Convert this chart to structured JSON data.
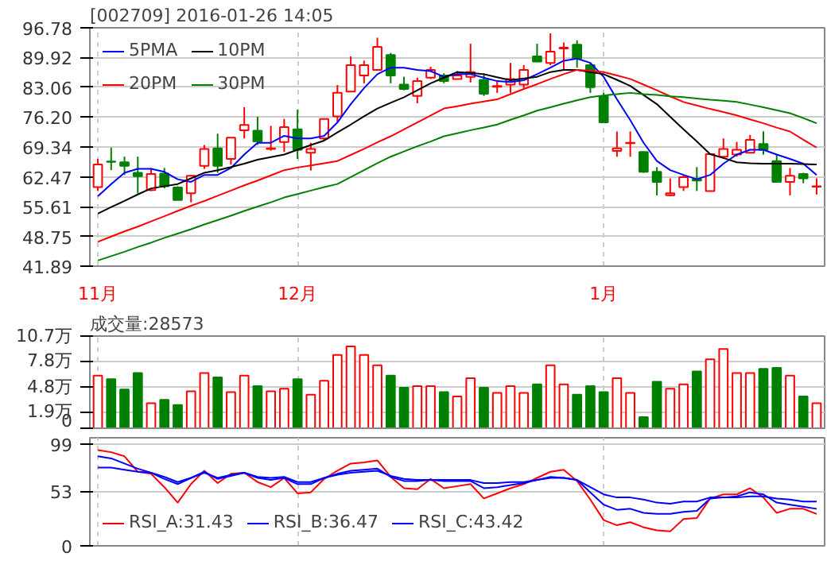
{
  "chart_data": [
    {
      "type": "candlestick",
      "title": "[002709] 2016-01-26 14:05",
      "categories": [
        "11月",
        null,
        null,
        null,
        null,
        null,
        null,
        null,
        null,
        null,
        null,
        null,
        null,
        null,
        null,
        "12月",
        null,
        null,
        null,
        null,
        null,
        null,
        null,
        null,
        null,
        null,
        null,
        null,
        null,
        null,
        null,
        null,
        null,
        null,
        null,
        null,
        null,
        null,
        "1月",
        null,
        null,
        null,
        null,
        null,
        null,
        null,
        null,
        null,
        null,
        null,
        null,
        null,
        null,
        null,
        null
      ],
      "ohlc": [
        [
          60.1,
          66.6,
          59.2,
          65.3
        ],
        [
          66.0,
          69.2,
          64.0,
          65.9
        ],
        [
          65.8,
          67.1,
          62.9,
          65.0
        ],
        [
          63.4,
          67.1,
          58.7,
          62.6
        ],
        [
          59.4,
          64.5,
          59.2,
          63.1
        ],
        [
          63.2,
          64.5,
          59.8,
          60.3
        ],
        [
          60.0,
          60.3,
          57.1,
          57.1
        ],
        [
          58.7,
          62.9,
          56.6,
          62.7
        ],
        [
          65.0,
          69.8,
          64.3,
          68.9
        ],
        [
          69.0,
          72.4,
          63.4,
          65.0
        ],
        [
          66.6,
          71.5,
          65.3,
          71.5
        ],
        [
          73.2,
          78.5,
          71.3,
          74.4
        ],
        [
          73.1,
          76.3,
          69.8,
          70.6
        ],
        [
          68.9,
          74.2,
          68.5,
          69.0
        ],
        [
          70.5,
          75.8,
          68.2,
          73.9
        ],
        [
          73.4,
          77.9,
          66.6,
          68.7
        ],
        [
          68.0,
          70.3,
          63.9,
          68.9
        ],
        [
          71.3,
          75.8,
          70.8,
          75.8
        ],
        [
          76.4,
          83.6,
          75.2,
          81.8
        ],
        [
          82.1,
          90.2,
          82.1,
          88.2
        ],
        [
          85.8,
          89.2,
          84.0,
          88.2
        ],
        [
          87.1,
          94.5,
          87.1,
          92.4
        ],
        [
          90.5,
          91.0,
          84.0,
          85.8
        ],
        [
          83.7,
          85.5,
          82.4,
          82.7
        ],
        [
          81.1,
          85.3,
          79.4,
          84.5
        ],
        [
          85.3,
          87.8,
          85.0,
          87.1
        ],
        [
          85.8,
          86.3,
          84.0,
          84.5
        ],
        [
          85.0,
          86.8,
          85.0,
          85.8
        ],
        [
          85.5,
          93.1,
          84.2,
          86.6
        ],
        [
          84.8,
          86.3,
          81.1,
          81.6
        ],
        [
          83.2,
          84.5,
          81.8,
          83.4
        ],
        [
          83.7,
          88.7,
          81.8,
          85.0
        ],
        [
          83.7,
          88.2,
          82.9,
          87.1
        ],
        [
          90.2,
          93.1,
          89.0,
          89.0
        ],
        [
          88.7,
          95.5,
          88.2,
          91.3
        ],
        [
          92.0,
          93.4,
          87.1,
          92.2
        ],
        [
          92.9,
          93.9,
          87.6,
          89.7
        ],
        [
          88.2,
          88.7,
          81.8,
          83.1
        ],
        [
          81.0,
          81.8,
          75.0,
          75.0
        ],
        [
          68.4,
          72.9,
          67.1,
          69.0
        ],
        [
          70.2,
          72.9,
          67.1,
          70.3
        ],
        [
          68.2,
          68.2,
          63.4,
          63.6
        ],
        [
          63.6,
          64.7,
          58.2,
          61.3
        ],
        [
          58.2,
          62.1,
          58.0,
          58.7
        ],
        [
          60.1,
          62.9,
          59.2,
          62.4
        ],
        [
          61.9,
          64.7,
          59.2,
          61.6
        ],
        [
          59.2,
          67.7,
          59.2,
          67.7
        ],
        [
          67.1,
          71.3,
          66.6,
          68.9
        ],
        [
          67.6,
          70.5,
          67.1,
          68.7
        ],
        [
          68.0,
          72.1,
          68.0,
          71.0
        ],
        [
          70.0,
          72.9,
          67.6,
          68.7
        ],
        [
          66.1,
          67.7,
          61.3,
          61.3
        ],
        [
          61.3,
          64.5,
          58.2,
          62.7
        ],
        [
          63.1,
          63.4,
          61.0,
          62.1
        ],
        [
          60.2,
          62.1,
          58.4,
          60.3
        ]
      ],
      "colors": [
        "#ff0000",
        "#008000",
        "#008000",
        "#008000",
        "#ff0000",
        "#008000",
        "#008000",
        "#ff0000",
        "#ff0000",
        "#008000",
        "#ff0000",
        "#ff0000",
        "#008000",
        "#ff0000",
        "#ff0000",
        "#008000",
        "#ff0000",
        "#ff0000",
        "#ff0000",
        "#ff0000",
        "#ff0000",
        "#ff0000",
        "#008000",
        "#008000",
        "#ff0000",
        "#ff0000",
        "#008000",
        "#ff0000",
        "#ff0000",
        "#008000",
        "#ff0000",
        "#ff0000",
        "#ff0000",
        "#008000",
        "#ff0000",
        "#ff0000",
        "#008000",
        "#008000",
        "#008000",
        "#ff0000",
        "#ff0000",
        "#008000",
        "#008000",
        "#ff0000",
        "#ff0000",
        "#008000",
        "#ff0000",
        "#ff0000",
        "#ff0000",
        "#ff0000",
        "#008000",
        "#008000",
        "#ff0000",
        "#008000",
        "#ff0000"
      ],
      "series": [
        {
          "type": "line",
          "name": "5PMA",
          "color": "#0000ff",
          "values": [
            58.0,
            60.8,
            63.4,
            64.3,
            64.3,
            63.6,
            61.9,
            61.3,
            62.9,
            62.9,
            64.5,
            67.6,
            70.3,
            70.3,
            71.9,
            71.3,
            71.3,
            71.9,
            75.0,
            79.2,
            82.9,
            86.1,
            87.6,
            87.6,
            87.1,
            86.8,
            85.5,
            86.1,
            86.1,
            85.3,
            84.5,
            84.3,
            84.7,
            86.1,
            87.6,
            89.2,
            89.7,
            88.7,
            85.5,
            80.3,
            75.5,
            70.3,
            66.1,
            64.0,
            62.9,
            61.9,
            62.9,
            65.5,
            67.6,
            68.7,
            68.7,
            67.6,
            66.6,
            65.5,
            62.9
          ]
        },
        {
          "type": "line",
          "name": "10PM",
          "color": "#000000",
          "values": [
            54.0,
            55.5,
            56.9,
            58.4,
            59.8,
            60.3,
            60.8,
            62.1,
            63.4,
            64.0,
            64.7,
            65.5,
            66.4,
            67.0,
            67.6,
            68.7,
            69.8,
            70.8,
            72.7,
            74.5,
            76.4,
            78.2,
            79.5,
            80.8,
            82.4,
            84.0,
            85.3,
            86.6,
            86.4,
            86.1,
            85.4,
            84.7,
            85.1,
            85.5,
            86.6,
            87.1,
            87.1,
            86.6,
            86.1,
            84.8,
            83.4,
            81.3,
            79.2,
            76.3,
            73.4,
            70.6,
            67.7,
            66.8,
            65.8,
            65.6,
            65.5,
            65.5,
            65.5,
            65.4,
            65.3
          ]
        },
        {
          "type": "line",
          "name": "20PM",
          "color": "#ff0000",
          "values": [
            47.5,
            48.7,
            49.9,
            51.0,
            52.2,
            53.4,
            54.6,
            55.8,
            56.9,
            58.1,
            59.3,
            60.5,
            61.6,
            62.8,
            64.0,
            64.6,
            65.1,
            65.6,
            66.1,
            67.5,
            68.9,
            70.4,
            71.8,
            73.4,
            75.0,
            76.6,
            78.2,
            78.7,
            79.3,
            79.8,
            80.3,
            81.5,
            82.7,
            83.8,
            85.0,
            86.1,
            87.1,
            86.9,
            86.6,
            85.8,
            85.0,
            83.7,
            82.4,
            81.0,
            79.7,
            78.9,
            78.1,
            77.4,
            76.6,
            75.7,
            74.8,
            73.8,
            72.9,
            71.0,
            69.2
          ]
        },
        {
          "type": "line",
          "name": "30PM",
          "color": "#008000",
          "values": [
            43.2,
            44.2,
            45.2,
            46.3,
            47.3,
            48.4,
            49.4,
            50.4,
            51.5,
            52.5,
            53.5,
            54.6,
            55.6,
            56.6,
            57.7,
            58.5,
            59.3,
            60.1,
            60.8,
            62.4,
            64.0,
            65.6,
            67.1,
            68.3,
            69.5,
            70.6,
            71.8,
            72.5,
            73.2,
            73.8,
            74.5,
            75.6,
            76.6,
            77.7,
            78.5,
            79.3,
            80.1,
            80.8,
            81.2,
            81.5,
            81.8,
            81.5,
            81.3,
            81.0,
            80.8,
            80.5,
            80.2,
            80.0,
            79.7,
            79.1,
            78.5,
            77.8,
            77.1,
            76.0,
            74.8
          ]
        }
      ],
      "ylim": [
        41.89,
        96.78
      ],
      "yticks": [
        41.89,
        48.75,
        55.61,
        62.47,
        69.34,
        {
          "value": 76.2,
          "label": "76.20"
        },
        83.06,
        89.92,
        96.78
      ],
      "grid": true,
      "legend": "top left"
    },
    {
      "type": "bar",
      "title": "成交量:28573",
      "categories": [
        null,
        null,
        null,
        null,
        null,
        null,
        null,
        null,
        null,
        null,
        null,
        null,
        null,
        null,
        null,
        null,
        null,
        null,
        null,
        null,
        null,
        null,
        null,
        null,
        null,
        null,
        null,
        null,
        null,
        null,
        null,
        null,
        null,
        null,
        null,
        null,
        null,
        null,
        null,
        null,
        null,
        null,
        null,
        null,
        null,
        null,
        null,
        null,
        null,
        null,
        null,
        null,
        null,
        null,
        null
      ],
      "values": [
        6.1,
        5.7,
        4.5,
        6.4,
        2.9,
        3.3,
        2.7,
        4.3,
        6.4,
        5.9,
        4.2,
        6.1,
        4.9,
        4.3,
        4.6,
        5.7,
        3.9,
        5.5,
        8.5,
        9.5,
        8.5,
        7.3,
        6.1,
        4.7,
        4.9,
        4.9,
        4.2,
        3.7,
        5.8,
        4.7,
        4.1,
        4.9,
        4.1,
        5.1,
        7.3,
        5.1,
        3.9,
        4.9,
        4.2,
        5.8,
        4.1,
        1.3,
        5.4,
        4.6,
        5.1,
        6.6,
        8.0,
        9.2,
        6.4,
        6.4,
        6.9,
        7.0,
        6.1,
        3.7,
        2.9
      ],
      "colors": [
        "#ff0000",
        "#008000",
        "#008000",
        "#008000",
        "#ff0000",
        "#008000",
        "#008000",
        "#ff0000",
        "#ff0000",
        "#008000",
        "#ff0000",
        "#ff0000",
        "#008000",
        "#ff0000",
        "#ff0000",
        "#008000",
        "#ff0000",
        "#ff0000",
        "#ff0000",
        "#ff0000",
        "#ff0000",
        "#ff0000",
        "#008000",
        "#008000",
        "#ff0000",
        "#ff0000",
        "#008000",
        "#ff0000",
        "#ff0000",
        "#008000",
        "#ff0000",
        "#ff0000",
        "#ff0000",
        "#008000",
        "#ff0000",
        "#ff0000",
        "#008000",
        "#008000",
        "#008000",
        "#ff0000",
        "#ff0000",
        "#008000",
        "#008000",
        "#ff0000",
        "#ff0000",
        "#008000",
        "#ff0000",
        "#ff0000",
        "#ff0000",
        "#ff0000",
        "#008000",
        "#008000",
        "#ff0000",
        "#008000",
        "#ff0000"
      ],
      "ylim": [
        0,
        10.7
      ],
      "yticks": [
        0,
        {
          "value": 1.9,
          "label": "1.9万"
        },
        {
          "value": 4.8,
          "label": "4.8万"
        },
        {
          "value": 7.8,
          "label": "7.8万"
        },
        {
          "value": 10.7,
          "label": "10.7万"
        }
      ],
      "grid": true
    },
    {
      "type": "line",
      "categories": [
        null,
        null,
        null,
        null,
        null,
        null,
        null,
        null,
        null,
        null,
        null,
        null,
        null,
        null,
        null,
        null,
        null,
        null,
        null,
        null,
        null,
        null,
        null,
        null,
        null,
        null,
        null,
        null,
        null,
        null,
        null,
        null,
        null,
        null,
        null,
        null,
        null,
        null,
        null,
        null,
        null,
        null,
        null,
        null,
        null,
        null,
        null,
        null,
        null,
        null,
        null,
        null,
        null,
        null,
        null
      ],
      "series": [
        {
          "name": "RSI_A:31.43",
          "color": "#ff0000",
          "values": [
            93,
            91,
            87,
            72,
            70,
            57,
            42,
            60,
            73,
            61,
            70,
            71,
            62,
            57,
            66,
            51,
            52,
            65,
            73,
            80,
            81,
            83,
            67,
            56,
            55,
            65,
            56,
            58,
            60,
            46,
            51,
            56,
            60,
            66,
            72,
            74,
            63,
            45,
            25,
            20,
            23,
            18,
            15,
            14,
            26,
            27,
            46,
            50,
            50,
            56,
            47,
            32,
            36,
            36,
            31
          ]
        },
        {
          "name": "RSI_B:36.47",
          "color": "#0000ff",
          "values": [
            87,
            85,
            80,
            75,
            71,
            65,
            60,
            66,
            72,
            65,
            68,
            71,
            66,
            64,
            66,
            60,
            60,
            66,
            70,
            73,
            74,
            75,
            67,
            63,
            63,
            64,
            63,
            63,
            63,
            56,
            57,
            59,
            61,
            64,
            67,
            66,
            64,
            52,
            40,
            35,
            36,
            32,
            31,
            31,
            33,
            34,
            46,
            47,
            48,
            52,
            50,
            42,
            40,
            38,
            36
          ]
        },
        {
          "name": "RSI_C:43.42",
          "color": "#0000ff",
          "values": [
            76,
            76,
            74,
            72,
            71,
            67,
            62,
            66,
            71,
            66,
            69,
            71,
            67,
            66,
            67,
            62,
            62,
            66,
            69,
            71,
            72,
            73,
            68,
            65,
            64,
            64,
            64,
            64,
            64,
            61,
            61,
            62,
            62,
            64,
            66,
            66,
            64,
            57,
            50,
            47,
            47,
            45,
            42,
            41,
            43,
            43,
            47,
            47,
            47,
            48,
            48,
            46,
            45,
            43,
            43
          ]
        }
      ],
      "ylim": [
        0,
        105
      ],
      "yticks": [
        0,
        53,
        99
      ],
      "grid": true,
      "legend": "bottom left"
    }
  ]
}
